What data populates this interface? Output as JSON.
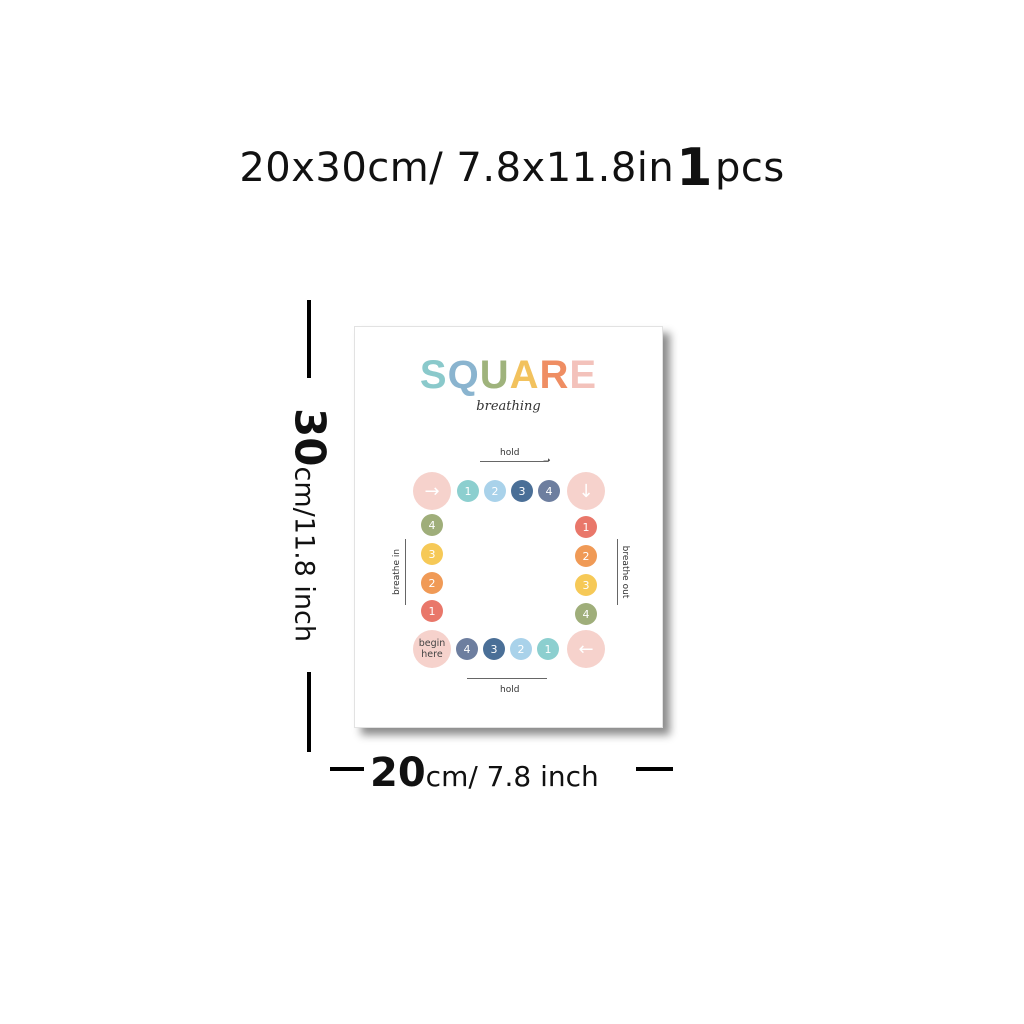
{
  "headline": {
    "size": "20x30cm/ 7.8x11.8in",
    "qty": "1",
    "unit": "pcs"
  },
  "dimensions": {
    "height_value": "30",
    "height_unit": "cm/11.8 inch",
    "width_value": "20",
    "width_unit": "cm/ 7.8 inch"
  },
  "poster": {
    "title_letters": [
      {
        "ch": "S",
        "color": "#8ac9cb"
      },
      {
        "ch": "Q",
        "color": "#8ab4cf"
      },
      {
        "ch": "U",
        "color": "#9fb37c"
      },
      {
        "ch": "A",
        "color": "#f2c25e"
      },
      {
        "ch": "R",
        "color": "#ef8e63"
      },
      {
        "ch": "E",
        "color": "#f3c2bb"
      }
    ],
    "subtitle": "breathing",
    "labels": {
      "hold_top": "hold",
      "hold_bottom": "hold",
      "breathe_in": "breathe in",
      "breathe_out": "breathe out",
      "begin_here": "begin here"
    },
    "top_row": [
      {
        "n": "1",
        "color": "#8ccfcf"
      },
      {
        "n": "2",
        "color": "#a9d2ea"
      },
      {
        "n": "3",
        "color": "#4a6f97"
      },
      {
        "n": "4",
        "color": "#6d7e9f"
      }
    ],
    "right_col": [
      {
        "n": "1",
        "color": "#e9776a"
      },
      {
        "n": "2",
        "color": "#f09a56"
      },
      {
        "n": "3",
        "color": "#f6c957"
      },
      {
        "n": "4",
        "color": "#9fae7a"
      }
    ],
    "bottom_row": [
      {
        "n": "4",
        "color": "#6d7e9f"
      },
      {
        "n": "3",
        "color": "#4a6f97"
      },
      {
        "n": "2",
        "color": "#a9d2ea"
      },
      {
        "n": "1",
        "color": "#8ccfcf"
      }
    ],
    "left_col": [
      {
        "n": "4",
        "color": "#9fae7a"
      },
      {
        "n": "3",
        "color": "#f6c957"
      },
      {
        "n": "2",
        "color": "#f09a56"
      },
      {
        "n": "1",
        "color": "#e9776a"
      }
    ],
    "corner_icons": [
      "arrow-right-icon",
      "arrow-down-icon",
      "arrow-left-icon"
    ]
  }
}
